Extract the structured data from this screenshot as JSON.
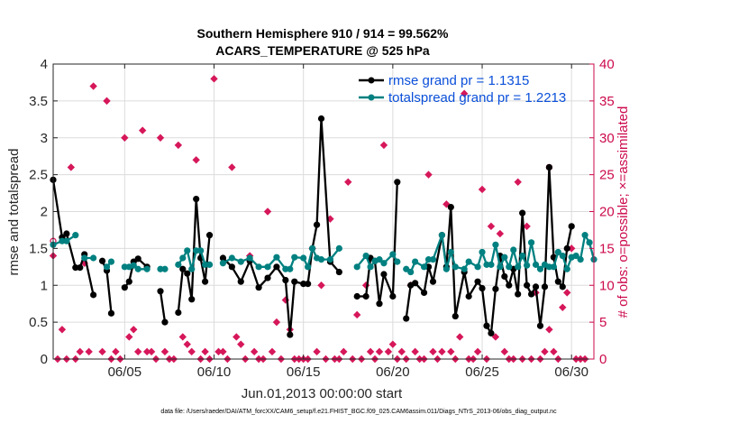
{
  "chart_data": {
    "type": "line",
    "title": "Southern Hemisphere 910 / 914 = 99.562%",
    "subtitle": "ACARS_TEMPERATURE @ 525 hPa",
    "xlabel": "Jun.01,2013 00:00:00 start",
    "ylabel": "rmse and totalspread",
    "ylabel_right": "# of obs: o=possible; ×=assimilated",
    "xlim": [
      1.0,
      31.25
    ],
    "ylim": [
      0,
      4
    ],
    "ylim_right": [
      0,
      40
    ],
    "x_ticks": [
      5,
      10,
      15,
      20,
      25,
      30
    ],
    "x_tick_labels": [
      "06/05",
      "06/10",
      "06/15",
      "06/20",
      "06/25",
      "06/30"
    ],
    "y_ticks": [
      0,
      0.5,
      1,
      1.5,
      2,
      2.5,
      3,
      3.5,
      4
    ],
    "y_tick_labels": [
      "0",
      "0.5",
      "1",
      "1.5",
      "2",
      "2.5",
      "3",
      "3.5",
      "4"
    ],
    "y_right_ticks": [
      0,
      5,
      10,
      15,
      20,
      25,
      30,
      35,
      40
    ],
    "y_right_tick_labels": [
      "0",
      "5",
      "10",
      "15",
      "20",
      "25",
      "30",
      "35",
      "40"
    ],
    "grid": true,
    "legend_location": "top-right",
    "footnote": "data file: /Users/raeder/DAI/ATM_forcXX/CAM6_setup/f.e21.FHIST_BGC.f09_025.CAM6assim.011/Diags_NTrS_2013-06/obs_diag_output.nc",
    "colors": {
      "rmse": "#000000",
      "spread": "#008080",
      "obs": "#d6175a",
      "legend_text": "#0a4fd9",
      "right_axis": "#cc0a4d"
    },
    "series": [
      {
        "name": "rmse grand pr = 1.1315",
        "color": "#000000",
        "points": [
          [
            1.0,
            2.43
          ],
          [
            1.5,
            1.65
          ],
          [
            1.75,
            1.7
          ],
          [
            2.25,
            1.24
          ],
          [
            2.5,
            1.24
          ],
          [
            2.75,
            1.42
          ],
          [
            3.25,
            0.87
          ],
          null,
          [
            3.75,
            1.33
          ],
          [
            4.0,
            1.2
          ],
          [
            4.25,
            0.62
          ],
          null,
          [
            5.0,
            0.97
          ],
          [
            5.25,
            1.05
          ],
          [
            5.5,
            1.32
          ],
          [
            5.75,
            1.36
          ],
          [
            6.25,
            1.25
          ],
          null,
          [
            7.0,
            0.92
          ],
          [
            7.25,
            0.5
          ],
          null,
          [
            8.0,
            0.63
          ],
          [
            8.25,
            1.22
          ],
          [
            8.5,
            1.16
          ],
          [
            8.75,
            0.81
          ],
          [
            9.0,
            2.17
          ],
          [
            9.25,
            1.37
          ],
          [
            9.5,
            1.05
          ],
          [
            9.75,
            1.68
          ],
          null,
          [
            10.5,
            1.37
          ],
          [
            11.0,
            1.25
          ],
          [
            11.5,
            1.05
          ],
          [
            12.0,
            1.33
          ],
          [
            12.5,
            0.97
          ],
          [
            13.0,
            1.1
          ],
          [
            13.5,
            1.25
          ],
          [
            14.0,
            1.07
          ],
          [
            14.25,
            0.33
          ],
          [
            14.5,
            1.05
          ],
          [
            15.0,
            1.02
          ],
          [
            15.25,
            1.02
          ],
          [
            15.5,
            1.5
          ],
          [
            15.75,
            1.82
          ],
          [
            16.0,
            3.26
          ],
          [
            16.5,
            1.32
          ],
          [
            17.0,
            1.18
          ],
          null,
          [
            18.0,
            0.85
          ],
          [
            18.5,
            0.85
          ],
          [
            18.75,
            1.37
          ],
          [
            19.0,
            1.33
          ],
          [
            19.25,
            0.75
          ],
          [
            19.5,
            1.15
          ],
          [
            20.0,
            0.85
          ],
          [
            20.25,
            2.4
          ],
          null,
          [
            20.75,
            0.55
          ],
          [
            21.0,
            1.0
          ],
          [
            21.25,
            1.03
          ],
          [
            21.75,
            0.9
          ],
          [
            22.0,
            1.25
          ],
          [
            22.25,
            1.05
          ],
          [
            22.75,
            1.68
          ],
          [
            23.0,
            1.25
          ],
          [
            23.25,
            2.06
          ],
          [
            23.5,
            0.58
          ],
          [
            24.0,
            1.18
          ],
          [
            24.25,
            0.85
          ],
          [
            24.75,
            1.05
          ],
          [
            25.0,
            0.96
          ],
          [
            25.25,
            0.45
          ],
          [
            25.5,
            0.35
          ],
          [
            25.75,
            0.95
          ],
          [
            26.0,
            1.4
          ],
          [
            26.25,
            1.12
          ],
          [
            26.5,
            1.0
          ],
          [
            26.75,
            1.22
          ],
          [
            27.0,
            0.88
          ],
          [
            27.25,
            1.98
          ],
          [
            27.5,
            1.0
          ],
          [
            27.75,
            0.88
          ],
          [
            28.0,
            0.98
          ],
          [
            28.25,
            0.45
          ],
          [
            28.5,
            0.98
          ],
          [
            28.75,
            2.6
          ],
          [
            29.0,
            1.38
          ],
          [
            29.25,
            1.05
          ],
          [
            29.5,
            0.98
          ],
          [
            29.75,
            1.5
          ],
          [
            30.0,
            1.8
          ]
        ]
      },
      {
        "name": "totalspread grand pr = 1.2213",
        "color": "#008080",
        "points": [
          [
            1.0,
            1.55
          ],
          [
            1.5,
            1.6
          ],
          [
            1.75,
            1.6
          ],
          [
            2.25,
            1.68
          ],
          null,
          [
            2.75,
            1.37
          ],
          [
            3.25,
            1.37
          ],
          null,
          [
            4.0,
            1.25
          ],
          [
            4.25,
            1.32
          ],
          null,
          [
            5.0,
            1.25
          ],
          [
            5.25,
            1.25
          ],
          [
            5.5,
            1.27
          ],
          [
            5.75,
            1.22
          ],
          [
            6.25,
            1.22
          ],
          null,
          [
            7.0,
            1.22
          ],
          [
            7.25,
            1.22
          ],
          null,
          [
            8.0,
            1.28
          ],
          [
            8.25,
            1.37
          ],
          [
            8.5,
            1.47
          ],
          [
            8.75,
            1.22
          ],
          [
            9.0,
            1.47
          ],
          [
            9.25,
            1.47
          ],
          [
            9.5,
            1.28
          ],
          [
            9.75,
            1.28
          ],
          null,
          [
            10.5,
            1.3
          ],
          [
            11.0,
            1.37
          ],
          [
            11.5,
            1.32
          ],
          [
            12.0,
            1.37
          ],
          [
            12.5,
            1.25
          ],
          [
            13.0,
            1.25
          ],
          [
            13.5,
            1.38
          ],
          [
            14.0,
            1.22
          ],
          [
            14.25,
            1.22
          ],
          [
            14.5,
            1.38
          ],
          [
            15.0,
            1.37
          ],
          [
            15.25,
            1.25
          ],
          [
            15.5,
            1.5
          ],
          [
            15.75,
            1.37
          ],
          [
            16.0,
            1.35
          ],
          [
            16.5,
            1.35
          ],
          [
            17.0,
            1.5
          ],
          null,
          [
            18.0,
            1.25
          ],
          [
            18.5,
            1.4
          ],
          [
            18.75,
            1.25
          ],
          [
            19.0,
            1.33
          ],
          [
            19.25,
            1.35
          ],
          [
            19.5,
            1.3
          ],
          [
            20.0,
            1.42
          ],
          [
            20.25,
            1.32
          ],
          null,
          [
            20.75,
            1.22
          ],
          [
            21.0,
            1.18
          ],
          [
            21.25,
            1.32
          ],
          [
            21.75,
            1.25
          ],
          [
            22.0,
            1.35
          ],
          [
            22.25,
            1.35
          ],
          [
            22.75,
            1.68
          ],
          [
            23.0,
            1.22
          ],
          [
            23.25,
            1.45
          ],
          [
            23.5,
            1.25
          ],
          [
            24.0,
            1.22
          ],
          [
            24.25,
            1.32
          ],
          [
            24.75,
            1.25
          ],
          [
            25.0,
            1.45
          ],
          [
            25.25,
            1.28
          ],
          [
            25.5,
            1.28
          ],
          [
            25.75,
            1.55
          ],
          [
            26.0,
            1.25
          ],
          [
            26.25,
            1.38
          ],
          [
            26.5,
            1.25
          ],
          [
            26.75,
            1.48
          ],
          [
            27.0,
            1.25
          ],
          [
            27.25,
            1.4
          ],
          [
            27.5,
            1.27
          ],
          [
            27.75,
            1.58
          ],
          [
            28.0,
            1.28
          ],
          [
            28.25,
            1.22
          ],
          [
            28.5,
            1.28
          ],
          [
            28.75,
            1.25
          ],
          [
            29.0,
            1.25
          ],
          [
            29.25,
            1.45
          ],
          [
            29.5,
            1.4
          ],
          [
            29.75,
            1.22
          ],
          [
            30.0,
            1.38
          ],
          [
            30.25,
            1.4
          ],
          [
            30.5,
            1.35
          ],
          [
            30.75,
            1.68
          ],
          [
            31.0,
            1.58
          ],
          [
            31.25,
            1.35
          ]
        ]
      }
    ],
    "obs_possible": [
      [
        1.0,
        16
      ],
      [
        28.75,
        26
      ]
    ],
    "obs_assimilated": [
      [
        1.0,
        14
      ],
      [
        1.25,
        0
      ],
      [
        1.5,
        4
      ],
      [
        1.75,
        0
      ],
      [
        2.0,
        26
      ],
      [
        2.25,
        0
      ],
      [
        2.5,
        1
      ],
      [
        2.75,
        13
      ],
      [
        3.0,
        1
      ],
      [
        3.25,
        37
      ],
      [
        3.75,
        1
      ],
      [
        4.0,
        35
      ],
      [
        4.25,
        0
      ],
      [
        4.5,
        1
      ],
      [
        4.75,
        0
      ],
      [
        5.0,
        30
      ],
      [
        5.25,
        3
      ],
      [
        5.5,
        4
      ],
      [
        5.75,
        1
      ],
      [
        6.0,
        31
      ],
      [
        6.25,
        1
      ],
      [
        6.5,
        1
      ],
      [
        6.75,
        0
      ],
      [
        7.0,
        30
      ],
      [
        7.25,
        1
      ],
      [
        7.5,
        0
      ],
      [
        7.75,
        0
      ],
      [
        8.0,
        29
      ],
      [
        8.25,
        3
      ],
      [
        8.5,
        2
      ],
      [
        8.75,
        1
      ],
      [
        9.0,
        27
      ],
      [
        9.25,
        0
      ],
      [
        9.5,
        1
      ],
      [
        9.75,
        0
      ],
      [
        10.0,
        38
      ],
      [
        10.25,
        1
      ],
      [
        10.5,
        1
      ],
      [
        10.75,
        0
      ],
      [
        11.0,
        26
      ],
      [
        11.25,
        3
      ],
      [
        11.5,
        2
      ],
      [
        11.75,
        0
      ],
      [
        12.0,
        14
      ],
      [
        12.25,
        1
      ],
      [
        12.5,
        0
      ],
      [
        12.75,
        0
      ],
      [
        13.0,
        20
      ],
      [
        13.25,
        1
      ],
      [
        13.5,
        5
      ],
      [
        13.75,
        0
      ],
      [
        14.0,
        8
      ],
      [
        14.25,
        4
      ],
      [
        14.5,
        0
      ],
      [
        14.75,
        0
      ],
      [
        15.0,
        0
      ],
      [
        15.25,
        0
      ],
      [
        15.5,
        15
      ],
      [
        15.75,
        1
      ],
      [
        16.0,
        10
      ],
      [
        16.25,
        0
      ],
      [
        16.5,
        19
      ],
      [
        16.75,
        0
      ],
      [
        17.0,
        0
      ],
      [
        17.25,
        1
      ],
      [
        17.5,
        24
      ],
      [
        17.75,
        0
      ],
      [
        18.0,
        6
      ],
      [
        18.25,
        0
      ],
      [
        18.5,
        10
      ],
      [
        18.75,
        1
      ],
      [
        19.0,
        0
      ],
      [
        19.25,
        1
      ],
      [
        19.5,
        29
      ],
      [
        19.75,
        1
      ],
      [
        20.0,
        2
      ],
      [
        20.25,
        0
      ],
      [
        20.5,
        1
      ],
      [
        20.75,
        0
      ],
      [
        21.0,
        10
      ],
      [
        21.25,
        1
      ],
      [
        21.5,
        0
      ],
      [
        21.75,
        0
      ],
      [
        22.0,
        25
      ],
      [
        22.25,
        1
      ],
      [
        22.5,
        0
      ],
      [
        22.75,
        1
      ],
      [
        23.0,
        21
      ],
      [
        23.25,
        1
      ],
      [
        23.5,
        0
      ],
      [
        23.75,
        3
      ],
      [
        24.0,
        36
      ],
      [
        24.25,
        0
      ],
      [
        24.5,
        0
      ],
      [
        24.75,
        1
      ],
      [
        25.0,
        23
      ],
      [
        25.25,
        0
      ],
      [
        25.5,
        18
      ],
      [
        25.75,
        3
      ],
      [
        26.0,
        17
      ],
      [
        26.25,
        1
      ],
      [
        26.5,
        0
      ],
      [
        26.75,
        0
      ],
      [
        27.0,
        24
      ],
      [
        27.25,
        0
      ],
      [
        27.5,
        18
      ],
      [
        27.75,
        0
      ],
      [
        28.0,
        9
      ],
      [
        28.25,
        0
      ],
      [
        28.5,
        1
      ],
      [
        28.75,
        4
      ],
      [
        29.0,
        1
      ],
      [
        29.25,
        0
      ],
      [
        29.5,
        7
      ],
      [
        29.75,
        9
      ],
      [
        30.0,
        15
      ],
      [
        30.25,
        0
      ],
      [
        30.5,
        0
      ],
      [
        30.75,
        0
      ]
    ]
  }
}
